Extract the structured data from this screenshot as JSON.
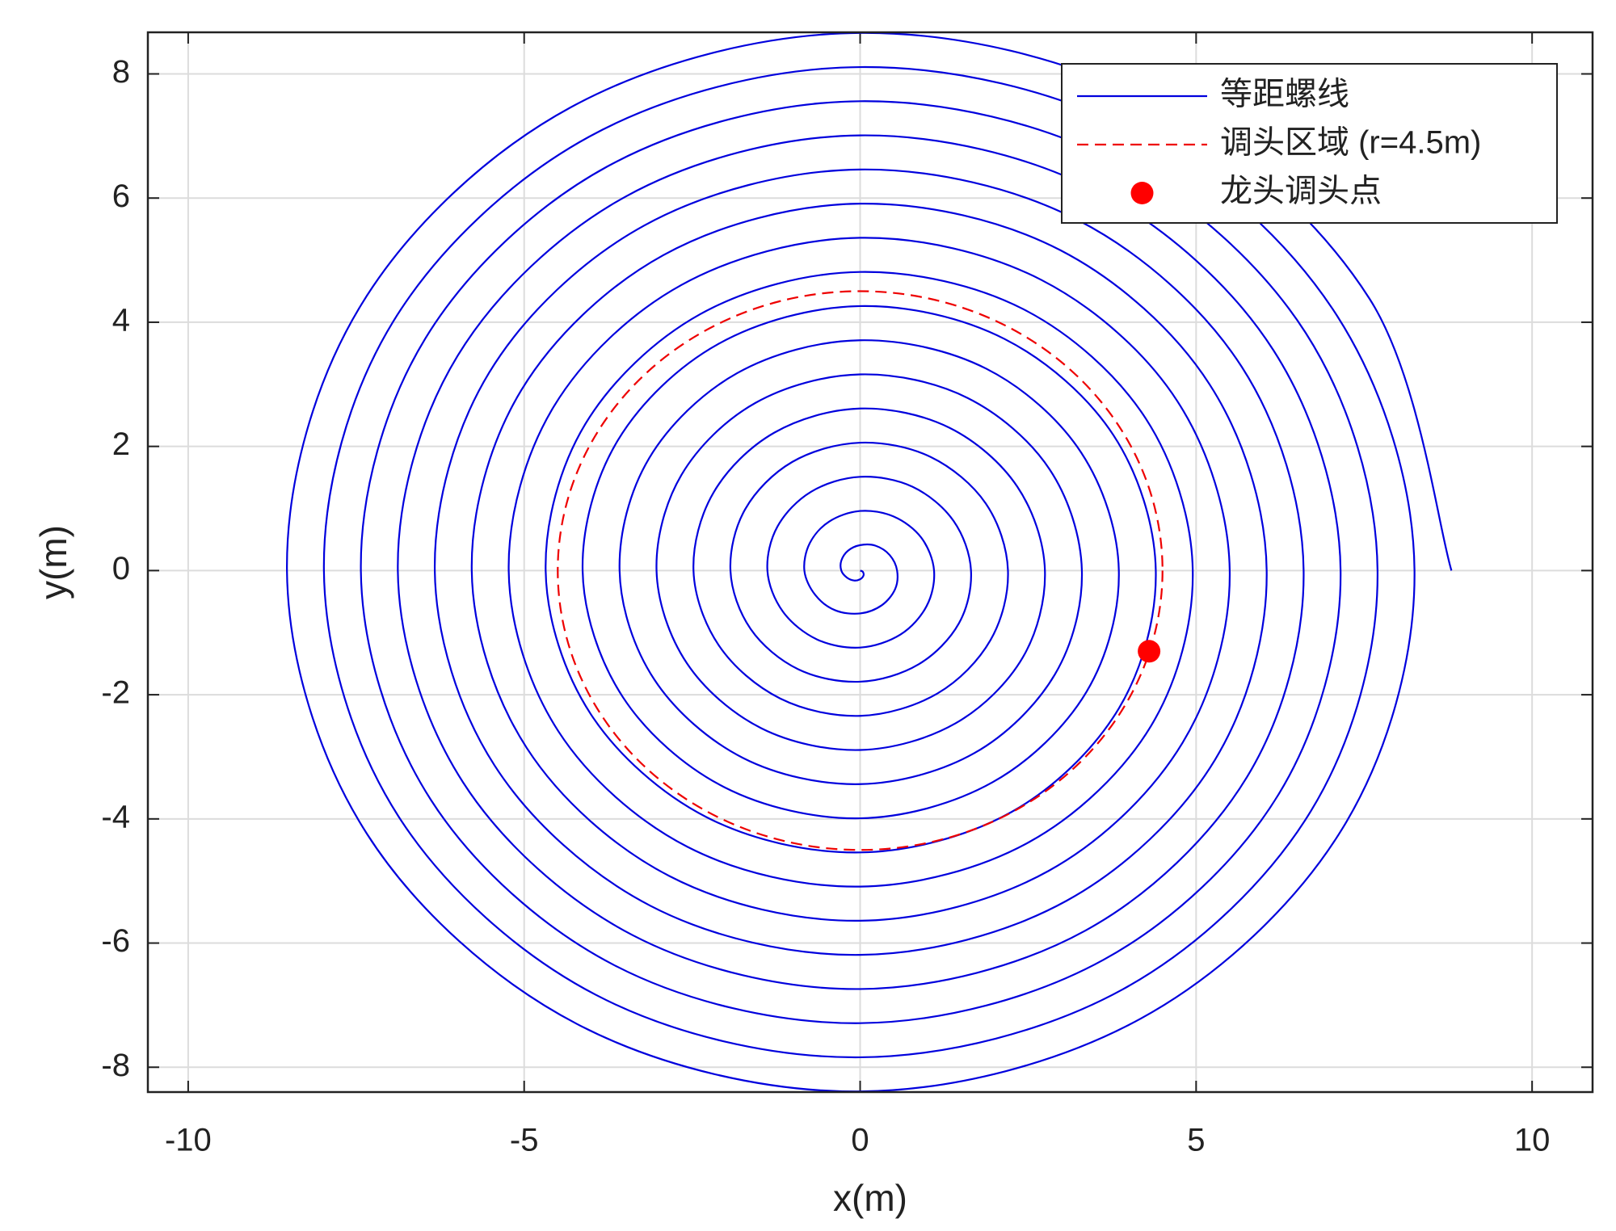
{
  "chart_data": {
    "type": "line",
    "xlabel": "x(m)",
    "ylabel": "y(m)",
    "xlim": [
      -10.6,
      10.9
    ],
    "ylim": [
      -8.4,
      8.67
    ],
    "xticks": [
      -10,
      -5,
      0,
      5,
      10
    ],
    "yticks": [
      -8,
      -6,
      -4,
      -2,
      0,
      2,
      4,
      6,
      8
    ],
    "grid": true,
    "legend": "upper right",
    "series": [
      {
        "name": "等距螺线",
        "kind": "line",
        "color": "#0000dd",
        "x": [
          0,
          0.04,
          0.05,
          0,
          -0.09,
          -0.2,
          -0.28,
          -0.28,
          -0.18,
          0,
          0.23,
          0.44,
          0.55,
          0.52,
          0.32,
          0,
          -0.37,
          -0.67,
          -0.83,
          -0.75,
          -0.46,
          0,
          0.5,
          0.91,
          1.1,
          0.99,
          0.6,
          0,
          -0.64,
          -1.15,
          -1.38,
          -1.23,
          -0.73,
          0,
          0.78,
          1.39,
          1.65,
          1.47,
          0.87,
          0,
          -0.92,
          -1.63,
          -1.93,
          -1.71,
          -1.01,
          0,
          1.05,
          1.87,
          2.2,
          1.94,
          1.15,
          0,
          -1.19,
          -2.1,
          -2.48,
          -2.18,
          -1.28,
          0,
          1.33,
          2.34,
          2.75,
          2.42,
          1.42,
          0,
          -1.47,
          -2.58,
          -3.03,
          -2.66,
          -1.56,
          0,
          1.6,
          2.82,
          3.3,
          2.9,
          1.7,
          0,
          -1.74,
          -3.06,
          -3.58,
          -3.14,
          -1.83,
          0,
          1.88,
          3.29,
          3.85,
          3.37,
          1.97,
          0,
          -2.02,
          -3.53,
          -4.13,
          -3.61,
          -2.11,
          0,
          2.15,
          3.77,
          4.4,
          3.85,
          2.25,
          0,
          -2.29,
          -4.01,
          -4.68,
          -4.09,
          -2.38,
          0,
          2.43,
          4.25,
          4.95,
          4.33,
          2.52,
          0,
          -2.57,
          -4.49,
          -5.23,
          -4.56,
          -2.66,
          0,
          2.7,
          4.72,
          5.5,
          4.8,
          2.8,
          0,
          -2.84,
          -4.96,
          -5.78,
          -5.04,
          -2.93,
          0,
          2.98,
          5.2,
          6.05,
          5.28,
          3.07,
          0,
          -3.12,
          -5.44,
          -6.33,
          -5.52,
          -3.21,
          0,
          3.25,
          5.68,
          6.6,
          5.76,
          3.35,
          0,
          -3.39,
          -5.91,
          -6.88,
          -5.99,
          -3.48,
          0,
          3.53,
          6.15,
          7.15,
          6.23,
          3.62,
          0,
          -3.67,
          -6.39,
          -7.43,
          -6.47,
          -3.76,
          0,
          3.8,
          6.63,
          7.7,
          6.71,
          3.9,
          0,
          -3.94,
          -6.87,
          -7.98,
          -6.95,
          -4.03,
          0,
          4.08,
          7.1,
          8.25,
          7.18,
          4.17,
          0,
          -4.22,
          -7.34,
          -8.53,
          -7.42,
          -4.31,
          0,
          4.35,
          7.58,
          8.8
        ],
        "y": [
          0,
          -0.02,
          -0.08,
          -0.14,
          -0.16,
          -0.11,
          0,
          0.16,
          0.32,
          0.41,
          0.4,
          0.25,
          0,
          -0.3,
          -0.56,
          -0.69,
          -0.64,
          -0.39,
          0,
          0.44,
          0.79,
          0.96,
          0.87,
          0.53,
          0,
          -0.57,
          -1.03,
          -1.24,
          -1.11,
          -0.66,
          0,
          0.71,
          1.27,
          1.51,
          1.35,
          0.8,
          0,
          -0.85,
          -1.51,
          -1.79,
          -1.59,
          -0.94,
          0,
          0.99,
          1.75,
          2.06,
          1.83,
          1.08,
          0,
          -1.12,
          -1.98,
          -2.34,
          -2.06,
          -1.21,
          0,
          1.26,
          2.22,
          2.61,
          2.3,
          1.35,
          0,
          -1.4,
          -2.46,
          -2.89,
          -2.54,
          -1.49,
          0,
          1.54,
          2.7,
          3.16,
          2.78,
          1.63,
          0,
          -1.67,
          -2.94,
          -3.44,
          -3.02,
          -1.76,
          0,
          1.81,
          3.18,
          3.71,
          3.25,
          1.9,
          0,
          -1.95,
          -3.41,
          -3.99,
          -3.49,
          -2.04,
          0,
          2.09,
          3.65,
          4.26,
          3.73,
          2.18,
          0,
          -2.22,
          -3.89,
          -4.54,
          -3.97,
          -2.31,
          0,
          2.36,
          4.13,
          4.81,
          4.21,
          2.45,
          0,
          -2.5,
          -4.37,
          -5.09,
          -4.45,
          -2.59,
          0,
          2.64,
          4.6,
          5.36,
          4.68,
          2.73,
          0,
          -2.77,
          -4.84,
          -5.64,
          -4.92,
          -2.86,
          0,
          2.91,
          5.08,
          5.91,
          5.16,
          3,
          0,
          -3.05,
          -5.32,
          -6.19,
          -5.4,
          -3.14,
          0,
          3.19,
          5.56,
          6.46,
          5.64,
          3.28,
          0,
          -3.32,
          -5.8,
          -6.74,
          -5.87,
          -3.41,
          0,
          3.46,
          6.03,
          7.01,
          6.11,
          3.55,
          0,
          -3.6,
          -6.27,
          -7.29,
          -6.35,
          -3.69,
          0,
          3.74,
          6.51,
          7.56,
          6.59,
          3.83,
          0,
          -3.87,
          -6.75,
          -7.84,
          -6.83,
          -3.96,
          0,
          4.01,
          6.99,
          8.11,
          7.07,
          4.1,
          0,
          -4.15,
          -7.22,
          -8.39,
          -7.3,
          -4.24,
          0,
          4.29,
          7.46,
          8.66,
          7.54,
          4.38,
          0
        ]
      },
      {
        "name": "调头区域 (r=4.5m)",
        "kind": "circle",
        "dashed": true,
        "color": "#ee0000",
        "center": [
          0,
          0
        ],
        "radius": 4.5
      },
      {
        "name": "龙头调头点",
        "kind": "scatter",
        "color": "#ff0000",
        "x": [
          4.3
        ],
        "y": [
          -1.3
        ]
      }
    ]
  }
}
